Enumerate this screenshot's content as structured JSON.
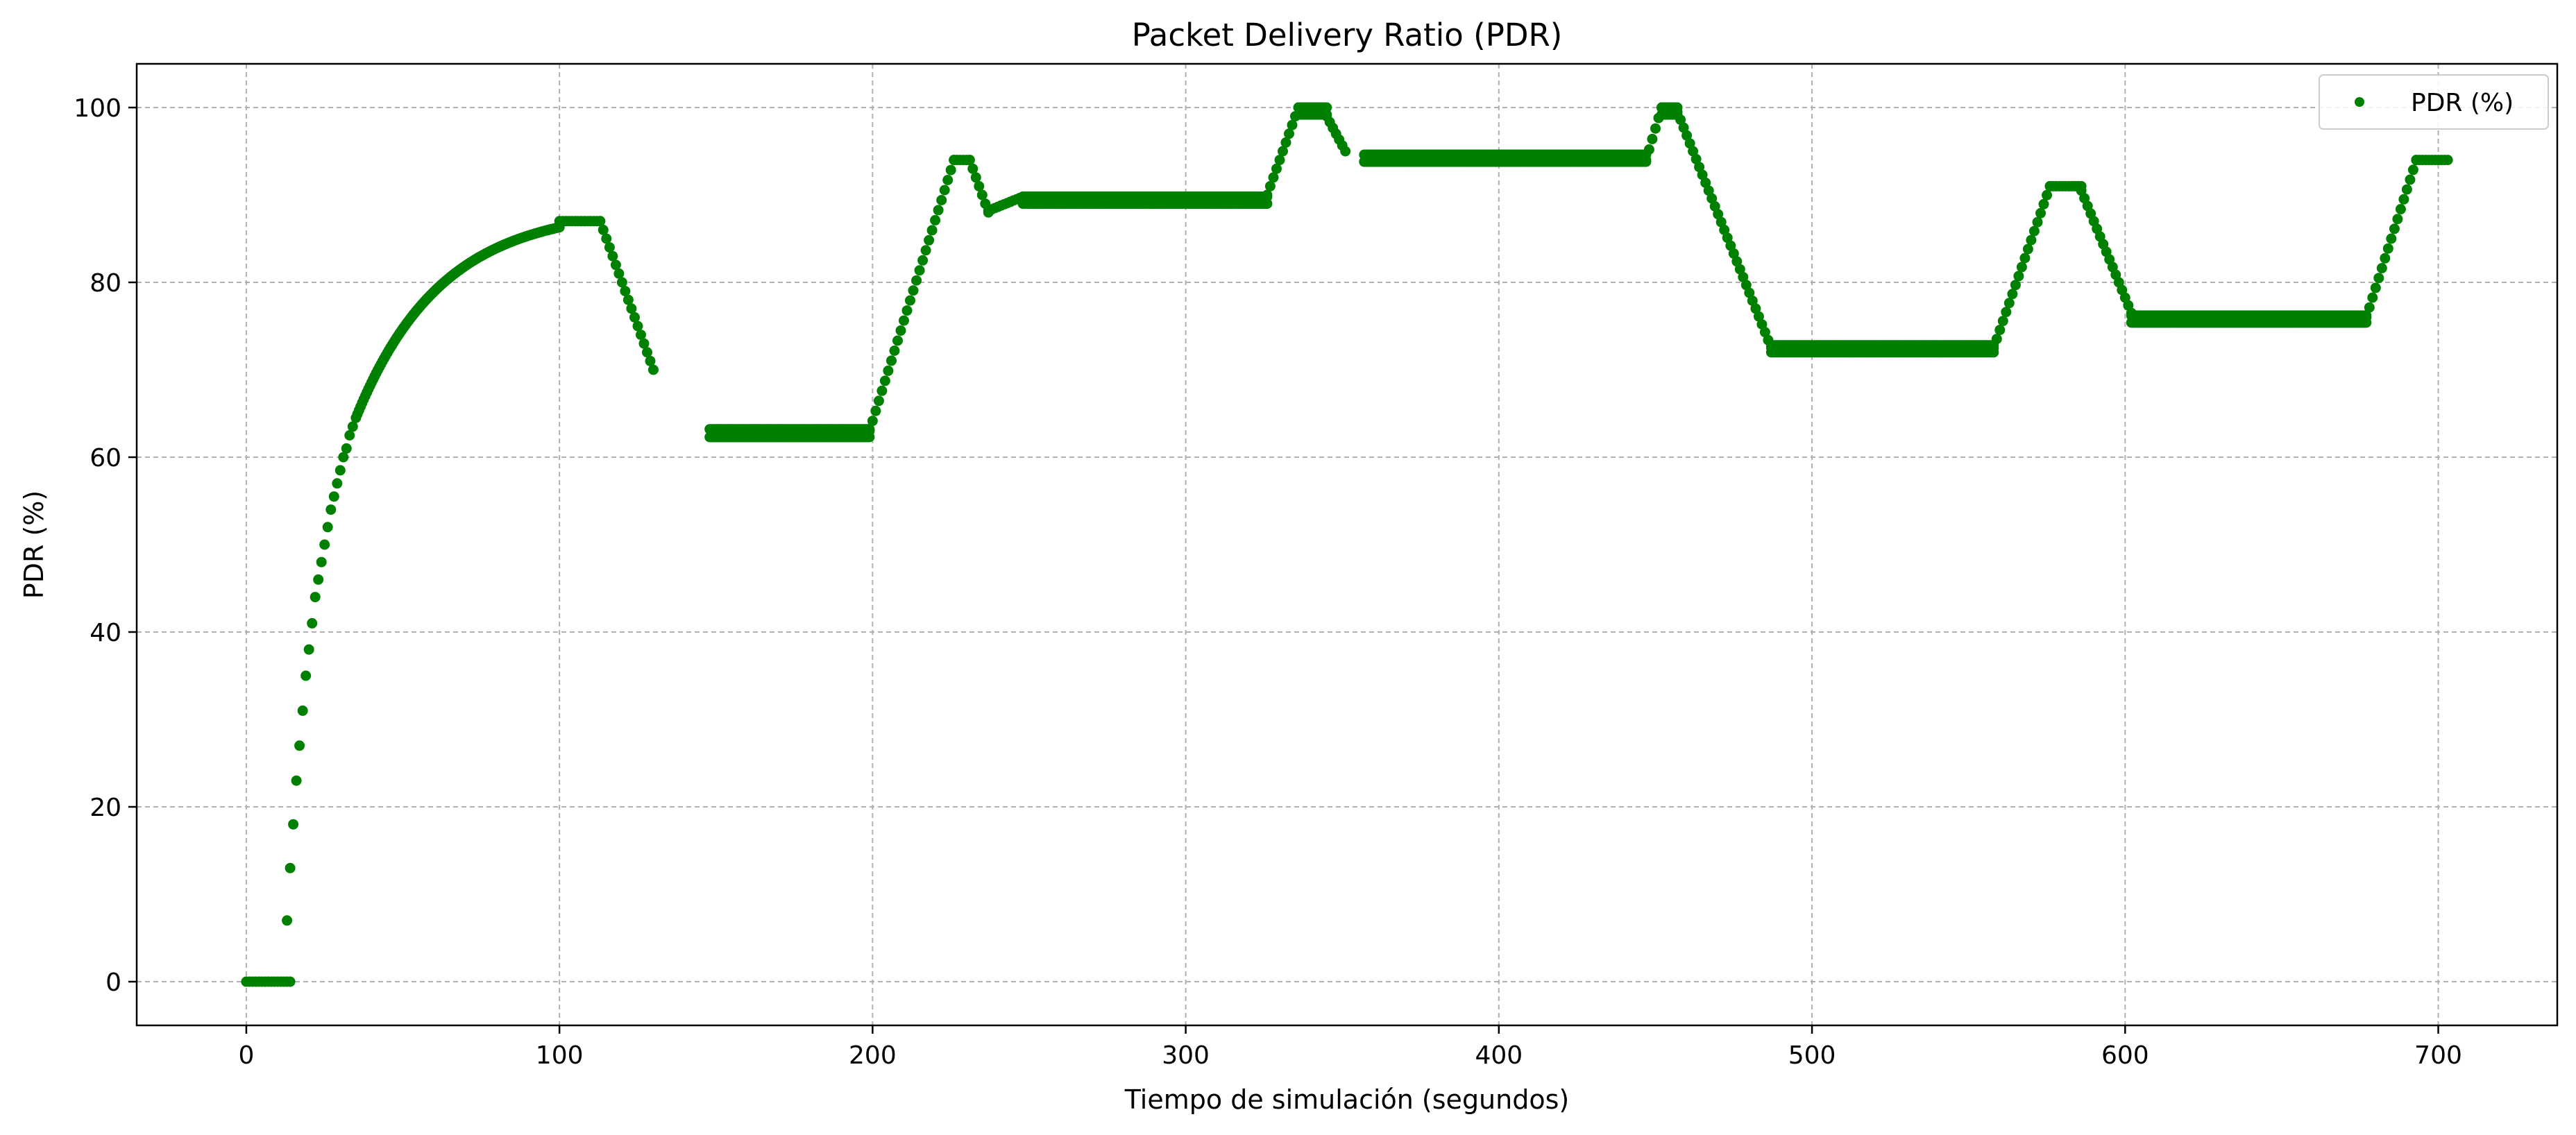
{
  "chart_data": {
    "type": "scatter",
    "title": "Packet Delivery Ratio (PDR)",
    "xlabel": "Tiempo de simulación (segundos)",
    "ylabel": "PDR (%)",
    "xlim": [
      -35,
      738
    ],
    "ylim": [
      -5,
      105
    ],
    "xticks": [
      0,
      100,
      200,
      300,
      400,
      500,
      600,
      700
    ],
    "yticks": [
      0,
      20,
      40,
      60,
      80,
      100
    ],
    "grid": true,
    "legend_position": "top-right",
    "color": "#008000",
    "series": [
      {
        "name": "PDR (%)",
        "segments": [
          {
            "x_start": 0,
            "x_end": 14,
            "step": 1,
            "kind": "const",
            "y": 0
          },
          {
            "x": [
              13,
              14,
              15,
              16,
              17,
              18,
              19,
              20,
              21,
              22,
              23,
              24,
              25,
              26,
              27,
              28,
              29,
              30,
              31,
              32,
              33,
              34
            ],
            "y": [
              7,
              13,
              18,
              23,
              27,
              31,
              35,
              38,
              41,
              44,
              46,
              48,
              50,
              52,
              54,
              55.5,
              57,
              58.5,
              60,
              61,
              62.5,
              63.5
            ]
          },
          {
            "x_start": 35,
            "x_end": 100,
            "step": 0.5,
            "kind": "sat",
            "y_from": 64.5,
            "y_to": 86.3,
            "tau": 27
          },
          {
            "x_start": 100,
            "x_end": 113,
            "step": 1,
            "kind": "const",
            "y": 87
          },
          {
            "x_start": 113,
            "x_end": 130,
            "step": 1,
            "kind": "lin",
            "y_from": 87,
            "y_to": 70
          },
          {
            "x_start": 148,
            "x_end": 199,
            "step": 0.5,
            "kind": "const",
            "y": 63.2
          },
          {
            "x_start": 148,
            "x_end": 199,
            "step": 0.5,
            "kind": "const",
            "y": 62.3
          },
          {
            "x_start": 199,
            "x_end": 226,
            "step": 1,
            "kind": "lin",
            "y_from": 63,
            "y_to": 94
          },
          {
            "x_start": 226,
            "x_end": 231,
            "step": 1,
            "kind": "const",
            "y": 94
          },
          {
            "x_start": 231,
            "x_end": 237,
            "step": 1,
            "kind": "lin",
            "y_from": 94,
            "y_to": 88
          },
          {
            "x_start": 237,
            "x_end": 248,
            "step": 1,
            "kind": "lin",
            "y_from": 88.2,
            "y_to": 89.8
          },
          {
            "x_start": 248,
            "x_end": 326,
            "step": 0.5,
            "kind": "const",
            "y": 89.8
          },
          {
            "x_start": 248,
            "x_end": 326,
            "step": 0.5,
            "kind": "const",
            "y": 89
          },
          {
            "x_start": 326,
            "x_end": 336,
            "step": 1,
            "kind": "lin",
            "y_from": 90,
            "y_to": 100
          },
          {
            "x_start": 336,
            "x_end": 345,
            "step": 0.5,
            "kind": "const",
            "y": 100
          },
          {
            "x_start": 336,
            "x_end": 345,
            "step": 0.5,
            "kind": "const",
            "y": 99.2
          },
          {
            "x_start": 345,
            "x_end": 351,
            "step": 1,
            "kind": "lin",
            "y_from": 99,
            "y_to": 95
          },
          {
            "x_start": 357,
            "x_end": 447,
            "step": 0.5,
            "kind": "const",
            "y": 94.6
          },
          {
            "x_start": 357,
            "x_end": 447,
            "step": 0.5,
            "kind": "const",
            "y": 93.8
          },
          {
            "x_start": 447,
            "x_end": 452,
            "step": 1,
            "kind": "lin",
            "y_from": 94,
            "y_to": 100
          },
          {
            "x_start": 452,
            "x_end": 457,
            "step": 0.5,
            "kind": "const",
            "y": 100
          },
          {
            "x_start": 452,
            "x_end": 457,
            "step": 0.5,
            "kind": "const",
            "y": 99.2
          },
          {
            "x_start": 457,
            "x_end": 487,
            "step": 1,
            "kind": "lin",
            "y_from": 99.5,
            "y_to": 72.5
          },
          {
            "x_start": 487,
            "x_end": 558,
            "step": 0.5,
            "kind": "const",
            "y": 72.8
          },
          {
            "x_start": 487,
            "x_end": 558,
            "step": 0.5,
            "kind": "const",
            "y": 72
          },
          {
            "x_start": 558,
            "x_end": 576,
            "step": 1,
            "kind": "lin",
            "y_from": 72.5,
            "y_to": 91
          },
          {
            "x_start": 576,
            "x_end": 586,
            "step": 1,
            "kind": "const",
            "y": 91
          },
          {
            "x_start": 586,
            "x_end": 602,
            "step": 1,
            "kind": "lin",
            "y_from": 90.5,
            "y_to": 76.5
          },
          {
            "x_start": 602,
            "x_end": 677,
            "step": 0.5,
            "kind": "const",
            "y": 76.2
          },
          {
            "x_start": 602,
            "x_end": 677,
            "step": 0.5,
            "kind": "const",
            "y": 75.4
          },
          {
            "x_start": 677,
            "x_end": 693,
            "step": 1,
            "kind": "lin",
            "y_from": 76,
            "y_to": 94
          },
          {
            "x_start": 693,
            "x_end": 703,
            "step": 1,
            "kind": "const",
            "y": 94
          }
        ]
      }
    ]
  }
}
